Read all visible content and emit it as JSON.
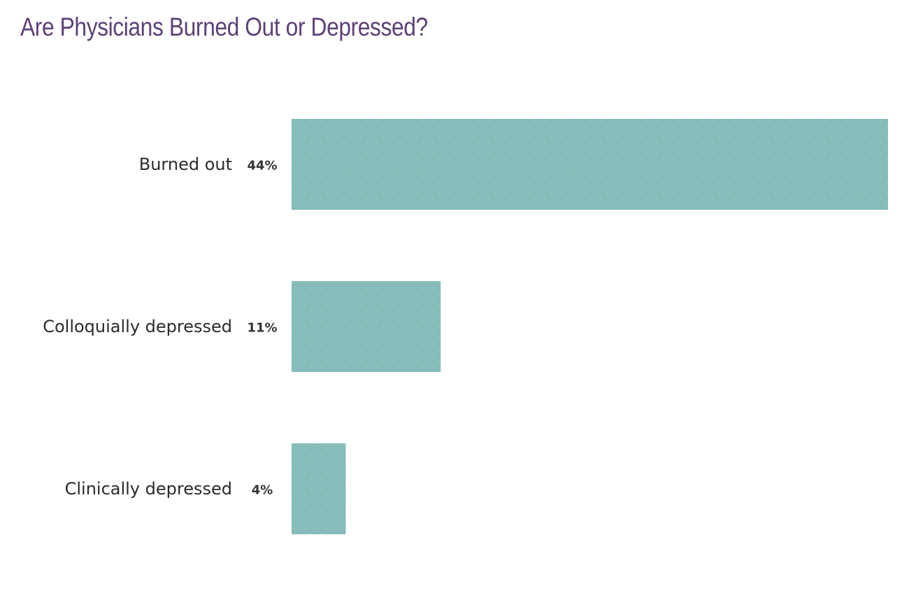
{
  "chart_data": {
    "type": "bar",
    "orientation": "horizontal",
    "title": "Are Physicians Burned Out or Depressed?",
    "categories": [
      "Burned out",
      "Colloquially depressed",
      "Clinically depressed"
    ],
    "values": [
      44,
      11,
      4
    ],
    "value_labels": [
      "44%",
      "11%",
      "4%"
    ],
    "unit": "%",
    "xlim": [
      0,
      44
    ],
    "grid": false,
    "legend": "none"
  },
  "colors": {
    "title": "#5e4177",
    "bar": "#86bcb9",
    "bar_dots": "#a9d2cf"
  }
}
